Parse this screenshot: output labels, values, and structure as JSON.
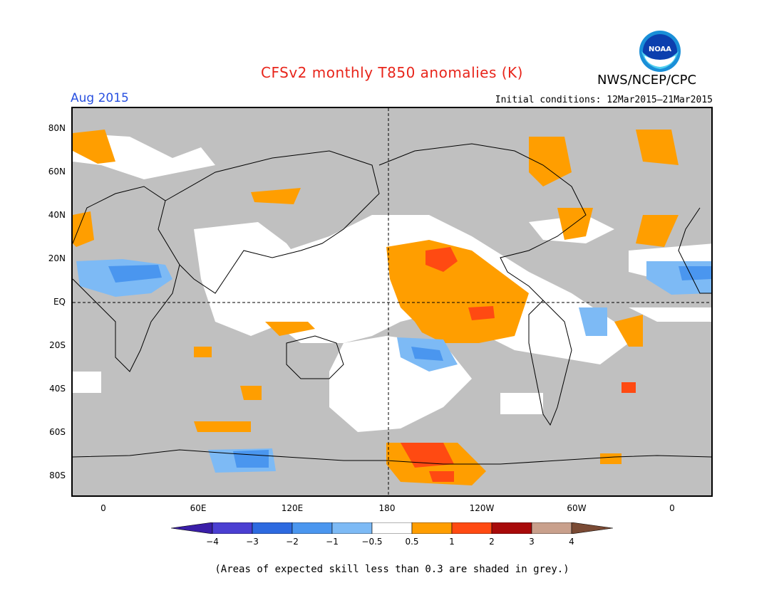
{
  "title": "CFSv2 monthly T850 anomalies (K)",
  "agency": "NWS/NCEP/CPC",
  "logo_text": "NOAA",
  "period": "Aug 2015",
  "initial_conditions": "Initial conditions: 12Mar2015–21Mar2015",
  "lat_labels": [
    "80N",
    "60N",
    "40N",
    "20N",
    "EQ",
    "20S",
    "40S",
    "60S",
    "80S"
  ],
  "lon_labels": [
    "0",
    "60E",
    "120E",
    "180",
    "120W",
    "60W",
    "0"
  ],
  "colorbar": {
    "labels": [
      "−4",
      "−3",
      "−2",
      "−1",
      "−0.5",
      "0.5",
      "1",
      "2",
      "3",
      "4"
    ],
    "colors": [
      "#3a1ea8",
      "#4b3fd2",
      "#2d6ae0",
      "#4a96ef",
      "#7dbaf5",
      "#ffffff",
      "#ff9e00",
      "#ff4a12",
      "#a80a0a",
      "#c9a08c",
      "#7a4a34"
    ]
  },
  "footnote": "(Areas of expected skill less than 0.3 are shaded in grey.)",
  "colors": {
    "title": "#e8251b",
    "period": "#2850e0",
    "skill_grey": "#c0c0c0",
    "anomaly_orange": "#ff9e00",
    "anomaly_red": "#ff4a12",
    "anomaly_lightblue": "#7dbaf5",
    "anomaly_blue": "#4a96ef"
  }
}
